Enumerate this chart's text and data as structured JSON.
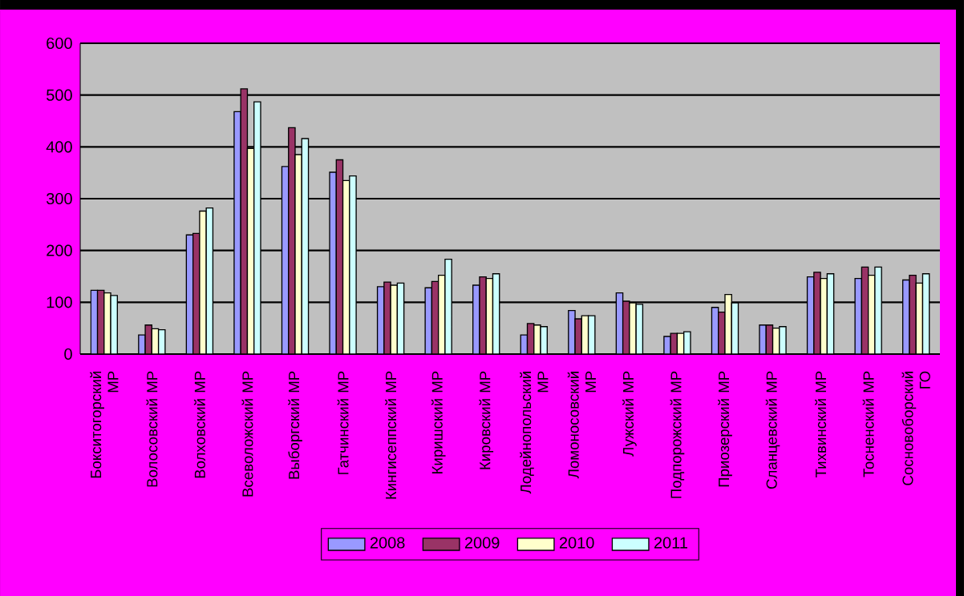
{
  "chart_data": {
    "type": "bar",
    "categories": [
      "Бокситогорский МР",
      "Волосовский МР",
      "Волховский МР",
      "Всеволожский МР",
      "Выборгский МР",
      "Гатчинский МР",
      "Кингисеппский МР",
      "Киришский МР",
      "Кировский МР",
      "Лодейнопольский МР",
      "Ломоносовский МР",
      "Лужский МР",
      "Подпорожский МР",
      "Приозерский МР",
      "Сланцевский МР",
      "Тихвинский МР",
      "Тосненский МР",
      "Сосновоборский ГО"
    ],
    "series": [
      {
        "name": "2008",
        "color": "#9999ff",
        "values": [
          123,
          37,
          230,
          468,
          362,
          351,
          130,
          128,
          133,
          37,
          84,
          118,
          34,
          90,
          56,
          149,
          146,
          143
        ]
      },
      {
        "name": "2009",
        "color": "#993366",
        "values": [
          123,
          56,
          233,
          512,
          437,
          375,
          139,
          140,
          149,
          59,
          68,
          102,
          40,
          81,
          56,
          158,
          168,
          152
        ]
      },
      {
        "name": "2010",
        "color": "#ffffcc",
        "values": [
          118,
          49,
          276,
          397,
          385,
          335,
          133,
          152,
          146,
          56,
          74,
          99,
          40,
          115,
          50,
          146,
          152,
          137
        ]
      },
      {
        "name": "2011",
        "color": "#ccffff",
        "values": [
          113,
          47,
          282,
          487,
          416,
          344,
          137,
          183,
          155,
          53,
          74,
          96,
          43,
          99,
          53,
          155,
          168,
          155
        ]
      }
    ],
    "ylim": [
      0,
      600
    ],
    "yticks": [
      0,
      100,
      200,
      300,
      400,
      500,
      600
    ],
    "grid": "y",
    "legend": "bottom"
  }
}
